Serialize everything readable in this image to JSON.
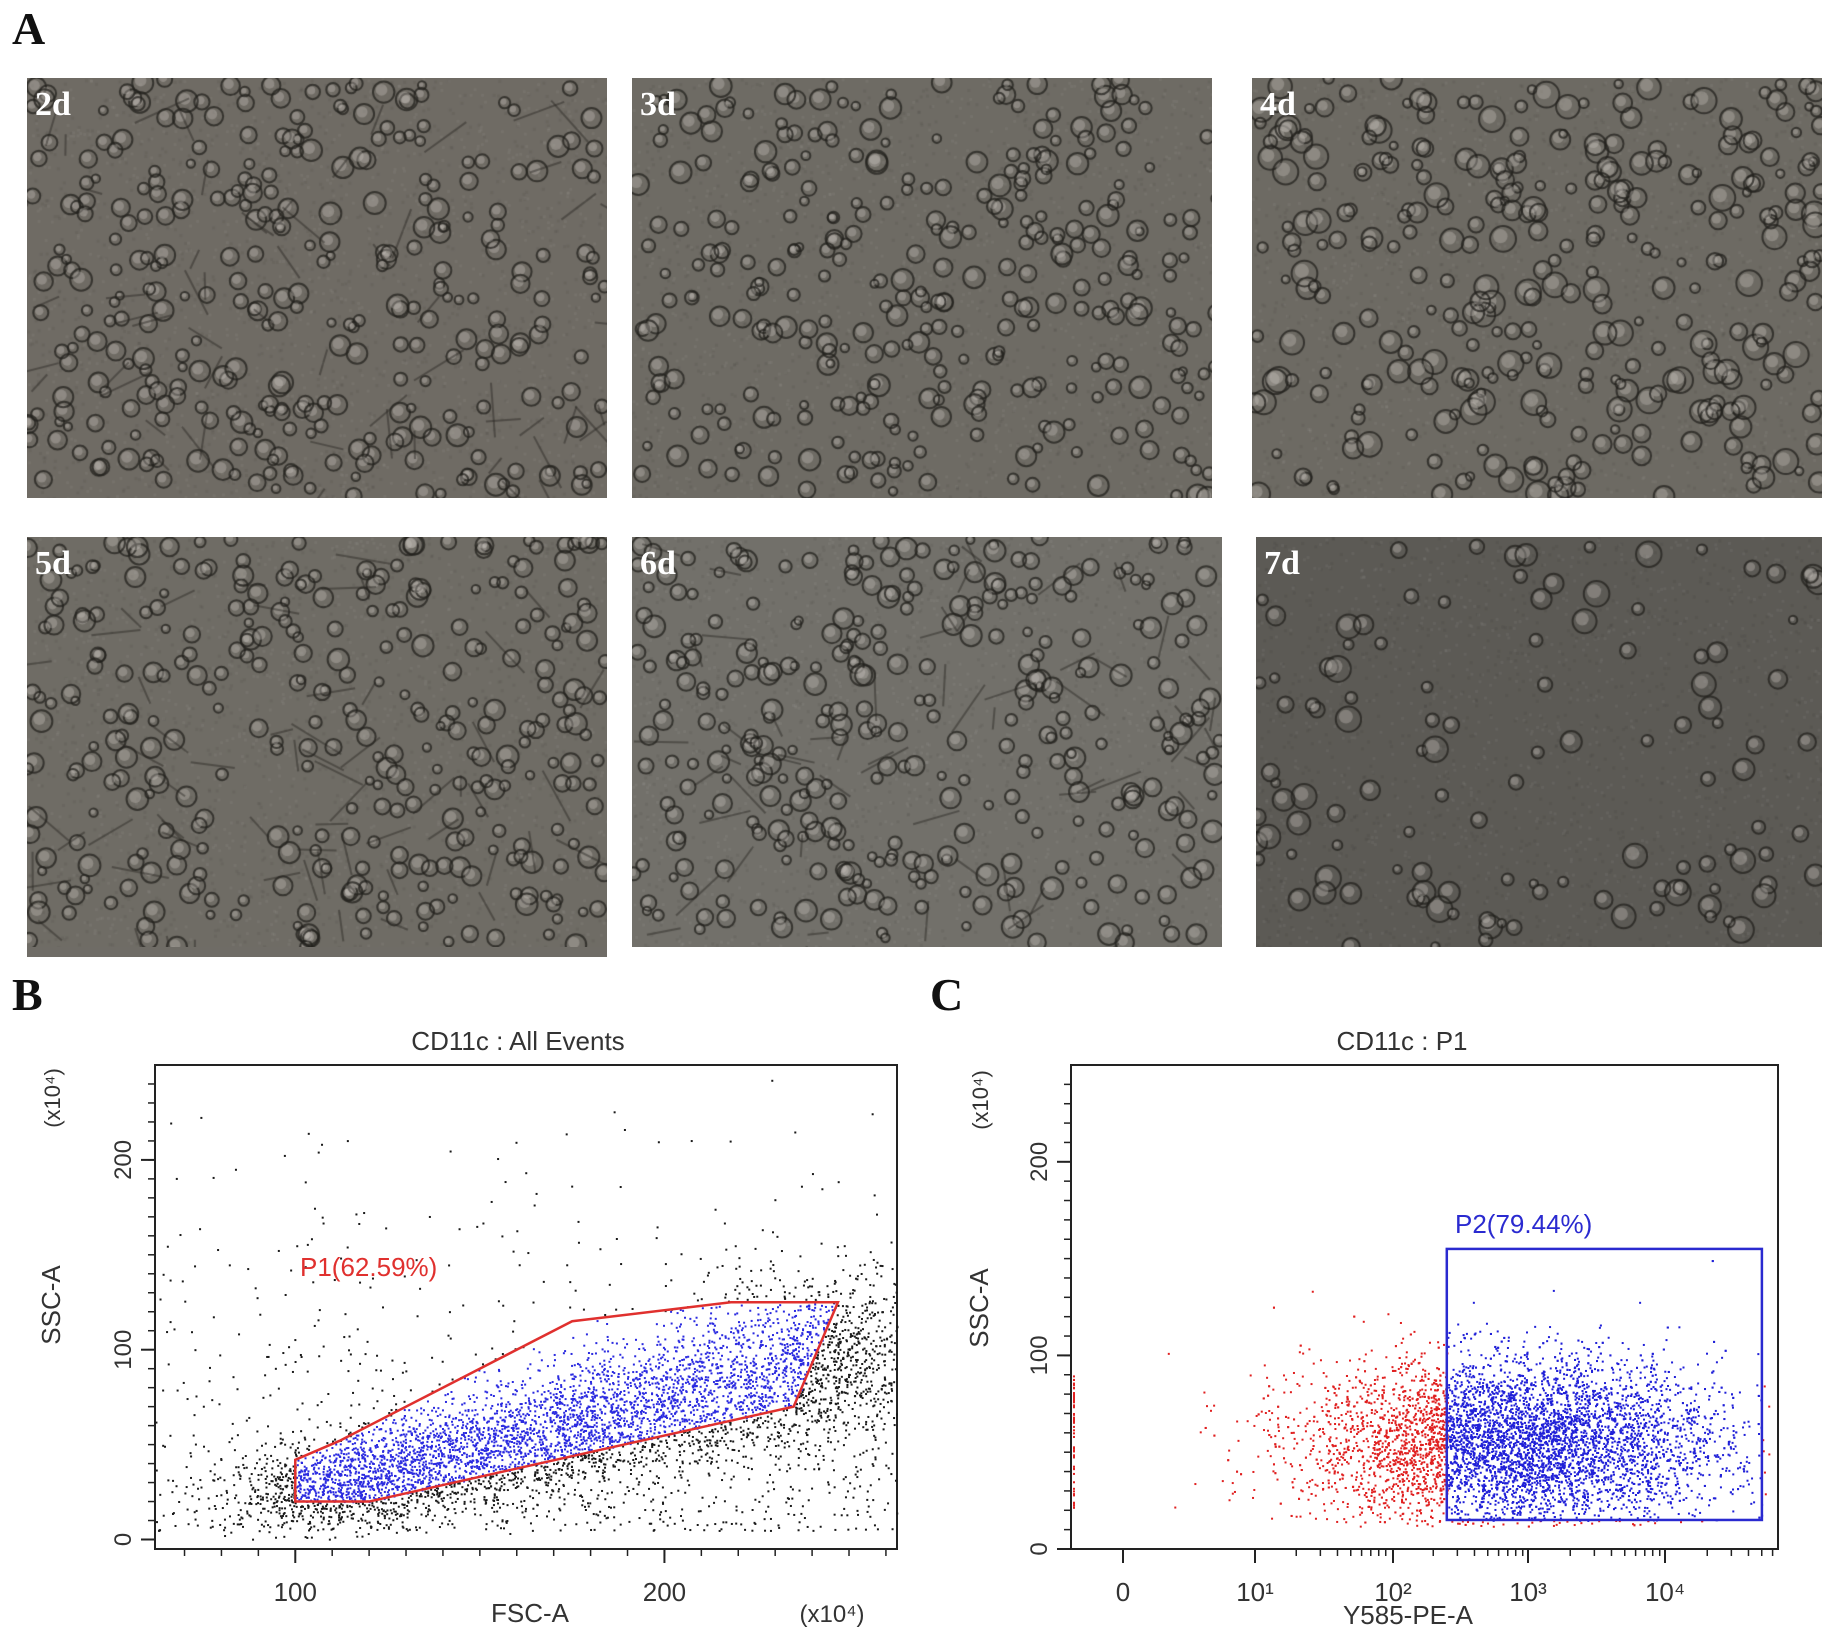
{
  "panels": {
    "a": "A",
    "b": "B",
    "c": "C"
  },
  "micrographs": [
    {
      "label": "2d",
      "tone": "#6f6b64"
    },
    {
      "label": "3d",
      "tone": "#6e6b64"
    },
    {
      "label": "4d",
      "tone": "#6d6a63"
    },
    {
      "label": "5d",
      "tone": "#6f6c65"
    },
    {
      "label": "6d",
      "tone": "#72706a"
    },
    {
      "label": "7d",
      "tone": "#5c5a55"
    }
  ],
  "chart_data": [
    {
      "type": "scatter",
      "title": "CD11c : All Events",
      "xlabel": "FSC-A",
      "ylabel": "SSC-A",
      "x_unit": "(x10⁴)",
      "y_unit": "(x10⁴)",
      "xlim": [
        62,
        263
      ],
      "ylim": [
        -5,
        250
      ],
      "x_ticks": [
        100,
        200
      ],
      "y_ticks": [
        0,
        100,
        200
      ],
      "gate": {
        "name": "P1(62.59%)",
        "color": "#e0302e",
        "polygon": [
          [
            100,
            20
          ],
          [
            120,
            20
          ],
          [
            235,
            70
          ],
          [
            247,
            125
          ],
          [
            218,
            125
          ],
          [
            175,
            115
          ],
          [
            112,
            52
          ],
          [
            100,
            42
          ]
        ]
      },
      "series": [
        {
          "color": "#1a1a1a"
        },
        {
          "color": "#2b2be0"
        }
      ]
    },
    {
      "type": "scatter",
      "title": "CD11c : P1",
      "xlabel": "Y585-PE-A",
      "ylabel": "SSC-A",
      "y_unit": "(x10⁴)",
      "x_scale": "log",
      "ylim": [
        0,
        250
      ],
      "x_ticks": [
        "0",
        "10¹",
        "10²",
        "10³",
        "10⁴"
      ],
      "y_ticks": [
        0,
        100,
        200
      ],
      "gate": {
        "name": "P2(79.44%)",
        "color": "#2a2ad0",
        "x_range": [
          "~2.5×10²",
          "~5×10⁴"
        ],
        "y_range": [
          15,
          155
        ]
      },
      "series": [
        {
          "color": "#e02020"
        },
        {
          "color": "#2020d8"
        }
      ]
    }
  ]
}
